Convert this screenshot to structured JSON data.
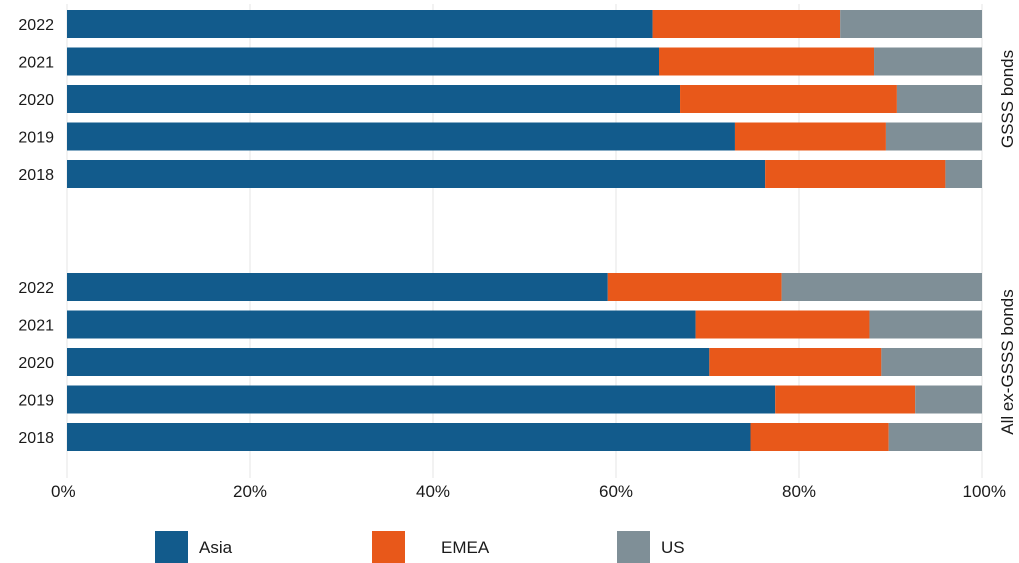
{
  "chart_data": {
    "type": "bar",
    "orientation": "horizontal",
    "stacked": true,
    "xlim": [
      0,
      100
    ],
    "x_ticks": [
      "0%",
      "20%",
      "40%",
      "60%",
      "80%",
      "100%"
    ],
    "grid": "vertical",
    "legend_position": "bottom",
    "colors": {
      "Asia": "#125b8c",
      "EMEA": "#e8581a",
      "US": "#7f8f97"
    },
    "groups": [
      {
        "label": "GSSS bonds",
        "categories": [
          "2022",
          "2021",
          "2020",
          "2019",
          "2018"
        ],
        "series": [
          {
            "name": "Asia",
            "values": [
              64,
              64.7,
              67,
              73,
              76.3
            ]
          },
          {
            "name": "EMEA",
            "values": [
              20.5,
              23.5,
              23.7,
              16.5,
              19.7
            ]
          },
          {
            "name": "US",
            "values": [
              15.5,
              11.8,
              9.3,
              10.5,
              4
            ]
          }
        ]
      },
      {
        "label": "All ex-GSSS bonds",
        "categories": [
          "2022",
          "2021",
          "2020",
          "2019",
          "2018"
        ],
        "series": [
          {
            "name": "Asia",
            "values": [
              59.1,
              68.7,
              70.2,
              77.4,
              74.7
            ]
          },
          {
            "name": "EMEA",
            "values": [
              19,
              19,
              18.8,
              15.3,
              15.1
            ]
          },
          {
            "name": "US",
            "values": [
              21.9,
              12.3,
              11,
              7.3,
              10.2
            ]
          }
        ]
      }
    ]
  }
}
